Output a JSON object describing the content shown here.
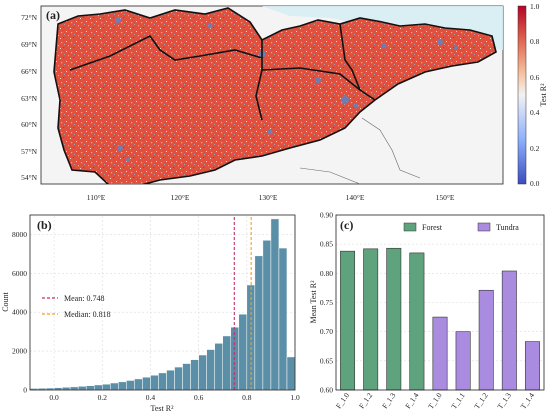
{
  "panel_a": {
    "label": "(a)",
    "lat_ticks": [
      "72°N",
      "69°N",
      "66°N",
      "63°N",
      "60°N",
      "57°N",
      "54°N"
    ],
    "lon_ticks": [
      "110°E",
      "120°E",
      "130°E",
      "140°E",
      "150°E"
    ],
    "colorbar": {
      "label": "Test R²",
      "ticks": [
        "1.0",
        "0.8",
        "0.6",
        "0.4",
        "0.2",
        "0.0"
      ],
      "low_color": "#3b4cc0",
      "mid_color": "#f7f7f7",
      "high_color": "#b40426"
    }
  },
  "chart_data": [
    {
      "type": "bar",
      "panel": "(b)",
      "xlabel": "Test R²",
      "ylabel": "Count",
      "xlim": [
        -0.1,
        1.0
      ],
      "ylim": [
        0,
        9000
      ],
      "x_ticks": [
        "0.0",
        "0.2",
        "0.4",
        "0.6",
        "0.8",
        "1.0"
      ],
      "y_ticks": [
        "0",
        "2000",
        "4000",
        "6000",
        "8000"
      ],
      "bin_width": 0.0333,
      "bin_starts": [
        -0.1,
        -0.0667,
        -0.0333,
        0.0,
        0.0333,
        0.0667,
        0.1,
        0.1333,
        0.1667,
        0.2,
        0.2333,
        0.2667,
        0.3,
        0.3333,
        0.3667,
        0.4,
        0.4333,
        0.4667,
        0.5,
        0.5333,
        0.5667,
        0.6,
        0.6333,
        0.6667,
        0.7,
        0.7333,
        0.7667,
        0.8,
        0.8333,
        0.8667,
        0.9,
        0.9333,
        0.9667
      ],
      "values": [
        80,
        90,
        100,
        120,
        140,
        160,
        190,
        220,
        260,
        300,
        360,
        420,
        490,
        570,
        660,
        760,
        880,
        1020,
        1180,
        1360,
        1560,
        1800,
        2080,
        2400,
        2780,
        3230,
        3900,
        5400,
        6900,
        7700,
        8800,
        7300,
        1700
      ],
      "color": "#5b8fa8",
      "vlines": [
        {
          "label": "Mean: 0.748",
          "x": 0.748,
          "color": "#c0306a"
        },
        {
          "label": "Median: 0.818",
          "x": 0.818,
          "color": "#f0a020"
        }
      ]
    },
    {
      "type": "bar",
      "panel": "(c)",
      "ylabel": "Mean Test R²",
      "ylim": [
        0.6,
        0.9
      ],
      "y_ticks": [
        "0.60",
        "0.65",
        "0.70",
        "0.75",
        "0.80",
        "0.85",
        "0.90"
      ],
      "categories": [
        "F_1.0",
        "F_1.2",
        "F_1.3",
        "F_1.4",
        "T_1.0",
        "T_1.1",
        "T_1.2",
        "T_1.3",
        "T_1.4"
      ],
      "values": [
        0.838,
        0.842,
        0.843,
        0.835,
        0.725,
        0.7,
        0.771,
        0.804,
        0.683
      ],
      "groups": [
        "Forest",
        "Forest",
        "Forest",
        "Forest",
        "Tundra",
        "Tundra",
        "Tundra",
        "Tundra",
        "Tundra"
      ],
      "legend": [
        {
          "name": "Forest",
          "color": "#5ea37d"
        },
        {
          "name": "Tundra",
          "color": "#a98be0"
        }
      ],
      "legend_position": "top-right"
    }
  ]
}
